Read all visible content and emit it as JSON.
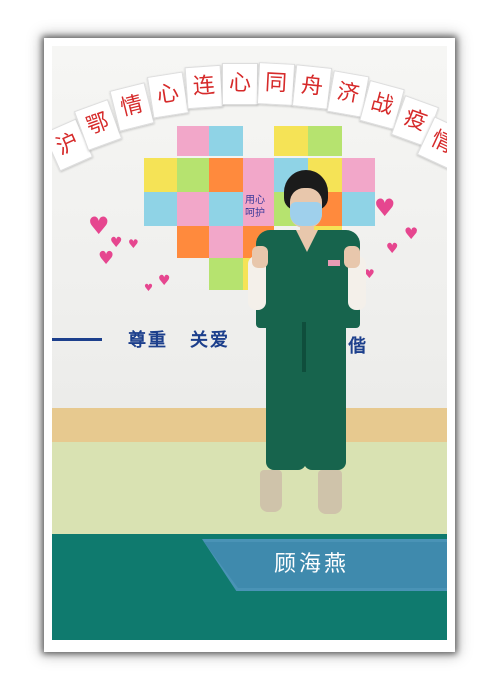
{
  "banner": {
    "chars": [
      "沪",
      "鄂",
      "情",
      "心",
      "连",
      "心",
      "同",
      "舟",
      "济",
      "战",
      "疫",
      "情"
    ]
  },
  "wall_slogan": {
    "left": "尊重",
    "middle": "关爱",
    "right": "偕"
  },
  "board_note": "用心\n呵护",
  "caption": {
    "name": "顾海燕"
  },
  "colors": {
    "footer": "#0f7a6e",
    "name_tab": "#3f8aad",
    "banner_text": "#d62a2a",
    "heart": "#e6468f"
  }
}
